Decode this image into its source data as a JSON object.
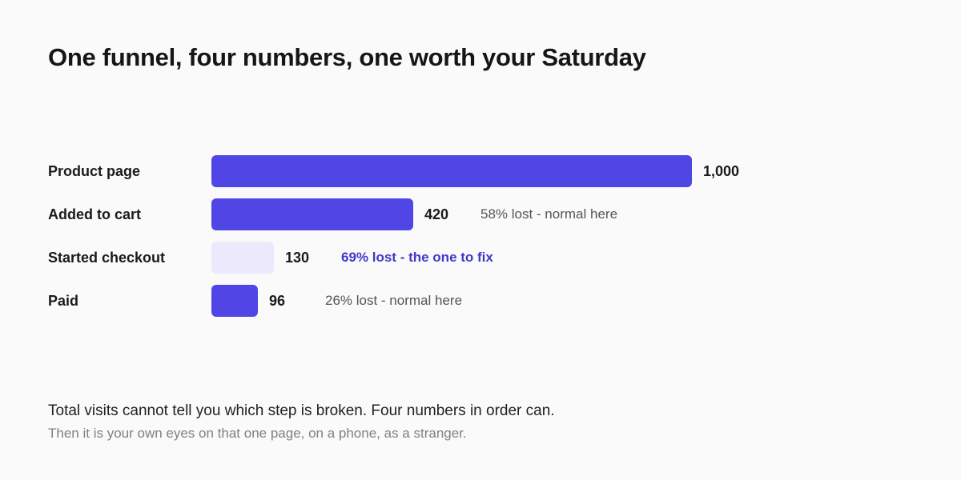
{
  "title": "One funnel, four numbers, one worth your Saturday",
  "chart_data": {
    "type": "bar",
    "orientation": "horizontal",
    "title": "One funnel, four numbers, one worth your Saturday",
    "xlim": [
      0,
      1000
    ],
    "grid": false,
    "categories": [
      "Product page",
      "Added to cart",
      "Started checkout",
      "Paid"
    ],
    "values": [
      1000,
      420,
      130,
      96
    ],
    "value_labels": [
      "1,000",
      "420",
      "130",
      "96"
    ],
    "annotations": [
      "",
      "58% lost - normal here",
      "69% lost - the one to fix",
      "26% lost - normal here"
    ],
    "highlighted_index": 2,
    "colors": {
      "bar": "#4f46e5",
      "bar_highlighted": "#ebe9fb",
      "note_highlight": "#4338ca",
      "note_normal": "#555555"
    }
  },
  "footer": {
    "line1": "Total visits cannot tell you which step is broken. Four numbers in order can.",
    "line2": "Then it is your own eyes on that one page, on a phone, as a stranger."
  }
}
